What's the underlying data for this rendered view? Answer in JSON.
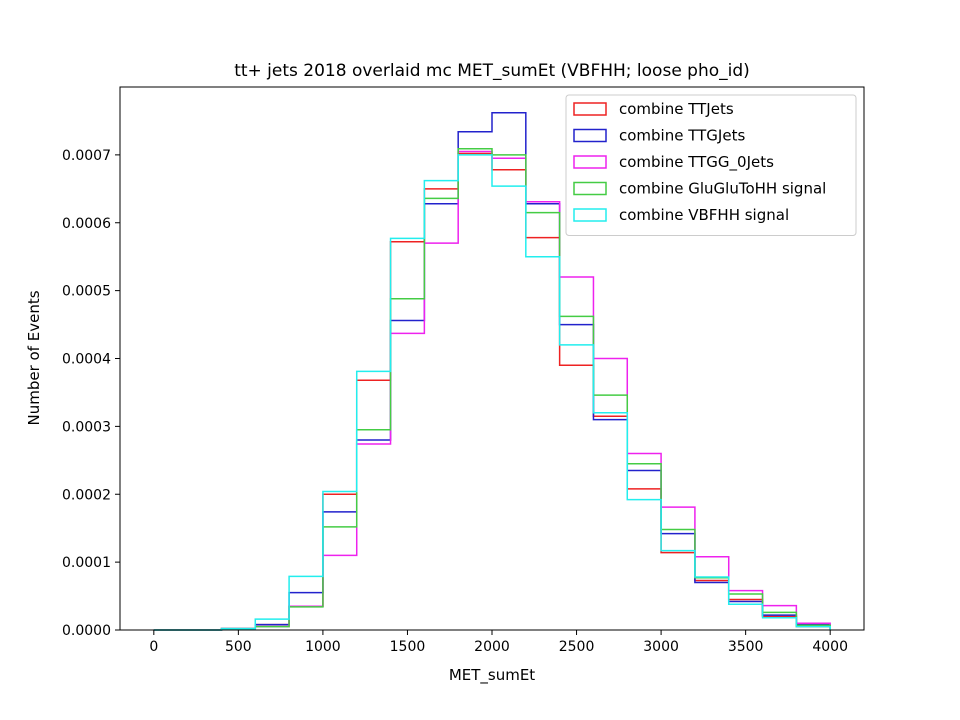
{
  "chart_data": {
    "type": "step-histogram",
    "title": "tt+ jets 2018 overlaid mc MET_sumEt (VBFHH; loose pho_id)",
    "xlabel": "MET_sumEt",
    "ylabel": "Number of Events",
    "xlim": [
      -200,
      4200
    ],
    "ylim": [
      0,
      0.0008
    ],
    "xticks": [
      0,
      500,
      1000,
      1500,
      2000,
      2500,
      3000,
      3500,
      4000
    ],
    "xtick_labels": [
      "0",
      "500",
      "1000",
      "1500",
      "2000",
      "2500",
      "3000",
      "3500",
      "4000"
    ],
    "yticks": [
      0,
      0.0001,
      0.0002,
      0.0003,
      0.0004,
      0.0005,
      0.0006,
      0.0007
    ],
    "ytick_labels": [
      "0.0000",
      "0.0001",
      "0.0002",
      "0.0003",
      "0.0004",
      "0.0005",
      "0.0006",
      "0.0007"
    ],
    "grid": false,
    "legend_position": "top-right",
    "bin_edges": [
      0,
      200,
      400,
      600,
      800,
      1000,
      1200,
      1400,
      1600,
      1800,
      2000,
      2200,
      2400,
      2600,
      2800,
      3000,
      3200,
      3400,
      3600,
      3800,
      4000
    ],
    "series": [
      {
        "name": "combine TTJets",
        "color": "#ee2222",
        "values": [
          0.0,
          0.0,
          2e-06,
          8e-06,
          3.5e-05,
          0.0002,
          0.000368,
          0.000572,
          0.00065,
          0.000702,
          0.000678,
          0.000578,
          0.00039,
          0.000315,
          0.000208,
          0.000114,
          7.3e-05,
          4.5e-05,
          2e-05,
          5e-06
        ]
      },
      {
        "name": "combine TTGJets",
        "color": "#2222cc",
        "values": [
          0.0,
          0.0,
          2e-06,
          8e-06,
          5.5e-05,
          0.000174,
          0.00028,
          0.000456,
          0.000628,
          0.000734,
          0.000762,
          0.000628,
          0.00045,
          0.00031,
          0.000235,
          0.000142,
          7e-05,
          4.2e-05,
          2.2e-05,
          8e-06
        ]
      },
      {
        "name": "combine TTGG_0Jets",
        "color": "#ee22ee",
        "values": [
          0.0,
          0.0,
          2e-06,
          5e-06,
          3.5e-05,
          0.00011,
          0.000274,
          0.000437,
          0.00057,
          0.000705,
          0.000695,
          0.000631,
          0.00052,
          0.0004,
          0.00026,
          0.000181,
          0.000108,
          5.8e-05,
          3.6e-05,
          1e-05
        ]
      },
      {
        "name": "combine GluGluToHH signal",
        "color": "#44cc44",
        "values": [
          0.0,
          0.0,
          2e-06,
          5e-06,
          3.4e-05,
          0.000152,
          0.000295,
          0.000488,
          0.000636,
          0.000709,
          0.0007,
          0.000615,
          0.000462,
          0.000346,
          0.000245,
          0.000148,
          7.7e-05,
          5.3e-05,
          2.6e-05,
          7e-06
        ]
      },
      {
        "name": "combine VBFHH signal",
        "color": "#22eeee",
        "values": [
          0.0,
          0.0,
          2e-06,
          1.6e-05,
          7.9e-05,
          0.000204,
          0.000381,
          0.000577,
          0.000662,
          0.0007,
          0.000654,
          0.00055,
          0.00042,
          0.00032,
          0.000192,
          0.000117,
          7.8e-05,
          3.8e-05,
          1.8e-05,
          5e-06
        ]
      }
    ]
  }
}
